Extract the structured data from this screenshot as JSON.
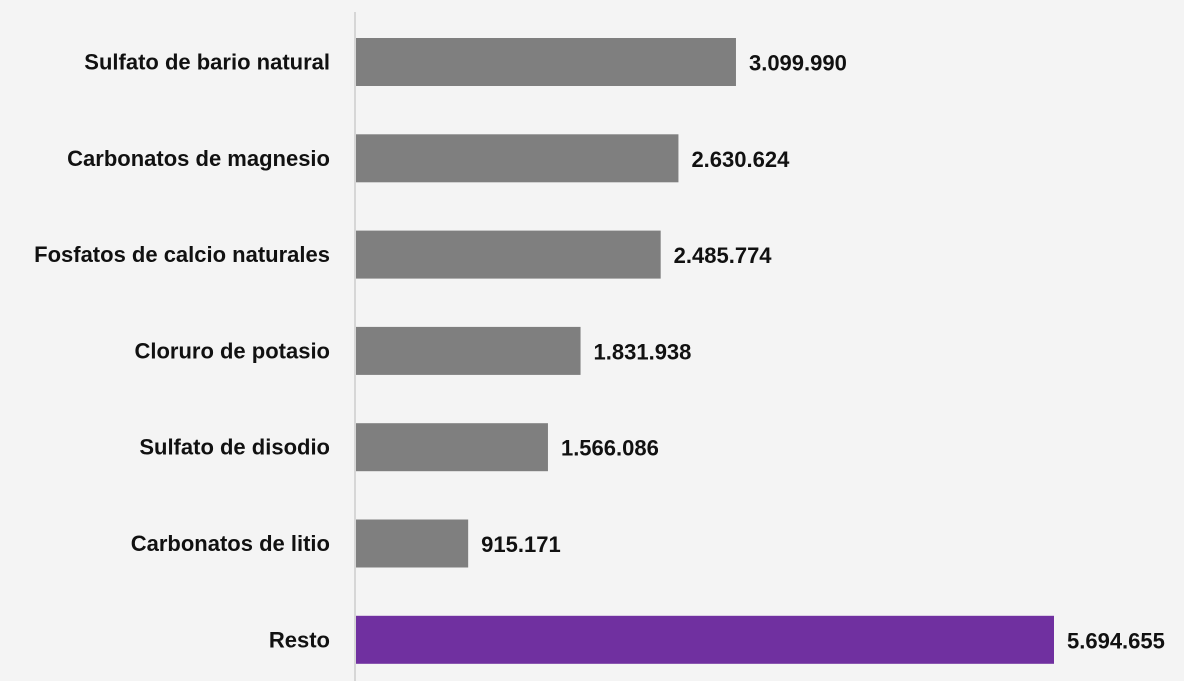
{
  "chart_data": {
    "type": "bar",
    "orientation": "horizontal",
    "categories": [
      "Sulfato de bario natural",
      "Carbonatos de magnesio",
      "Fosfatos de calcio naturales",
      "Cloruro de potasio",
      "Sulfato de disodio",
      "Carbonatos de litio",
      "Resto"
    ],
    "values": [
      3099990,
      2630624,
      2485774,
      1831938,
      1566086,
      915171,
      5694655
    ],
    "value_labels": [
      "3.099.990",
      "2.630.624",
      "2.485.774",
      "1.831.938",
      "1.566.086",
      "915.171",
      "5.694.655"
    ],
    "colors": {
      "default": "#7f7f7f",
      "highlight": "#7030a0",
      "axis": "#cccccc",
      "text": "#111111",
      "background": "#f4f4f4"
    },
    "highlight_category": "Resto",
    "title": "",
    "xlabel": "",
    "ylabel": "",
    "xlim": [
      0,
      5694655
    ],
    "grid": false,
    "legend": "none"
  }
}
